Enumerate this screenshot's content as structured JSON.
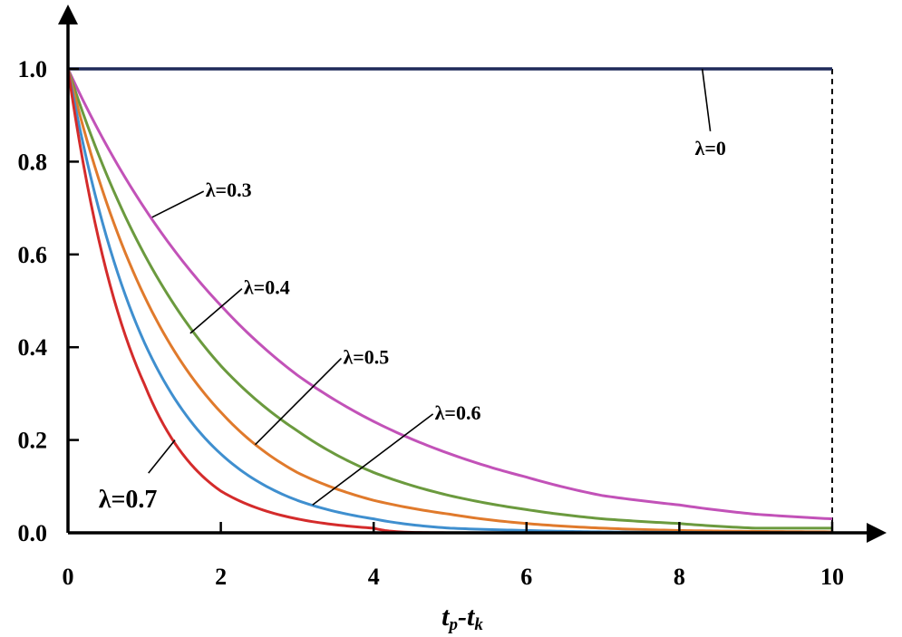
{
  "chart_data": {
    "type": "line",
    "title": "",
    "xlabel": {
      "main1": "t",
      "sub1": "p",
      "dash": "-",
      "main2": "t",
      "sub2": "k"
    },
    "ylabel": "",
    "xlim": [
      0,
      10
    ],
    "ylim": [
      0,
      1.0
    ],
    "x_ticks": [
      "0",
      "2",
      "4",
      "6",
      "8",
      "10"
    ],
    "y_ticks": [
      "0.0",
      "0.2",
      "0.4",
      "0.6",
      "0.8",
      "1.0"
    ],
    "grid": false,
    "legend": "none",
    "series": [
      {
        "name": "λ=0",
        "lambda": 0,
        "color": "#1f2a5a",
        "x": [
          0,
          10
        ],
        "y": [
          1.0,
          1.0
        ]
      },
      {
        "name": "λ=0.3",
        "lambda": 0.3,
        "color": "#c252b8",
        "x": [
          0,
          1,
          2,
          3,
          4,
          5,
          6,
          7,
          8,
          9,
          10
        ],
        "y": [
          1.0,
          0.7,
          0.49,
          0.34,
          0.24,
          0.17,
          0.12,
          0.08,
          0.06,
          0.04,
          0.03
        ]
      },
      {
        "name": "λ=0.4",
        "lambda": 0.4,
        "color": "#6b9a3e",
        "x": [
          0,
          1,
          2,
          3,
          4,
          5,
          6,
          7,
          8,
          9,
          10
        ],
        "y": [
          1.0,
          0.6,
          0.36,
          0.22,
          0.13,
          0.08,
          0.05,
          0.03,
          0.02,
          0.01,
          0.01
        ]
      },
      {
        "name": "λ=0.5",
        "lambda": 0.5,
        "color": "#e07a2c",
        "x": [
          0,
          1,
          2,
          3,
          4,
          5,
          6,
          7,
          8,
          9,
          10
        ],
        "y": [
          1.0,
          0.51,
          0.26,
          0.13,
          0.07,
          0.04,
          0.02,
          0.01,
          0.005,
          0.003,
          0.002
        ]
      },
      {
        "name": "λ=0.6",
        "lambda": 0.6,
        "color": "#3f8fcf",
        "x": [
          0,
          1,
          2,
          3,
          4,
          5,
          6,
          7,
          8,
          9,
          10
        ],
        "y": [
          1.0,
          0.41,
          0.17,
          0.07,
          0.03,
          0.01,
          0.005,
          0.002,
          0.001,
          0.0,
          0.0
        ]
      },
      {
        "name": "λ=0.7",
        "lambda": 0.7,
        "color": "#d42b2b",
        "x": [
          0,
          1,
          2,
          3,
          4,
          5,
          6,
          7,
          8,
          9,
          10
        ],
        "y": [
          1.0,
          0.32,
          0.09,
          0.03,
          0.01,
          0.0,
          0.0,
          0.0,
          0.0,
          0.0,
          0.0
        ]
      }
    ],
    "annotations": [
      {
        "text": "λ=0",
        "series": 0,
        "target": [
          8.3,
          1.0
        ],
        "label": [
          8.5,
          0.85
        ],
        "size": "normal"
      },
      {
        "text": "λ=0.3",
        "series": 1,
        "target": [
          1.1,
          0.68
        ],
        "label": [
          1.8,
          0.74
        ],
        "size": "normal"
      },
      {
        "text": "λ=0.4",
        "series": 2,
        "target": [
          1.6,
          0.43
        ],
        "label": [
          2.3,
          0.53
        ],
        "size": "normal"
      },
      {
        "text": "λ=0.5",
        "series": 3,
        "target": [
          2.45,
          0.19
        ],
        "label": [
          3.6,
          0.38
        ],
        "size": "normal"
      },
      {
        "text": "λ=0.6",
        "series": 4,
        "target": [
          3.2,
          0.06
        ],
        "label": [
          4.8,
          0.26
        ],
        "size": "normal"
      },
      {
        "text": "λ=0.7",
        "series": 5,
        "target": [
          1.4,
          0.2
        ],
        "label": [
          0.4,
          0.07
        ],
        "size": "big"
      }
    ],
    "reference_line": {
      "x": 10,
      "style": "dashed"
    }
  }
}
